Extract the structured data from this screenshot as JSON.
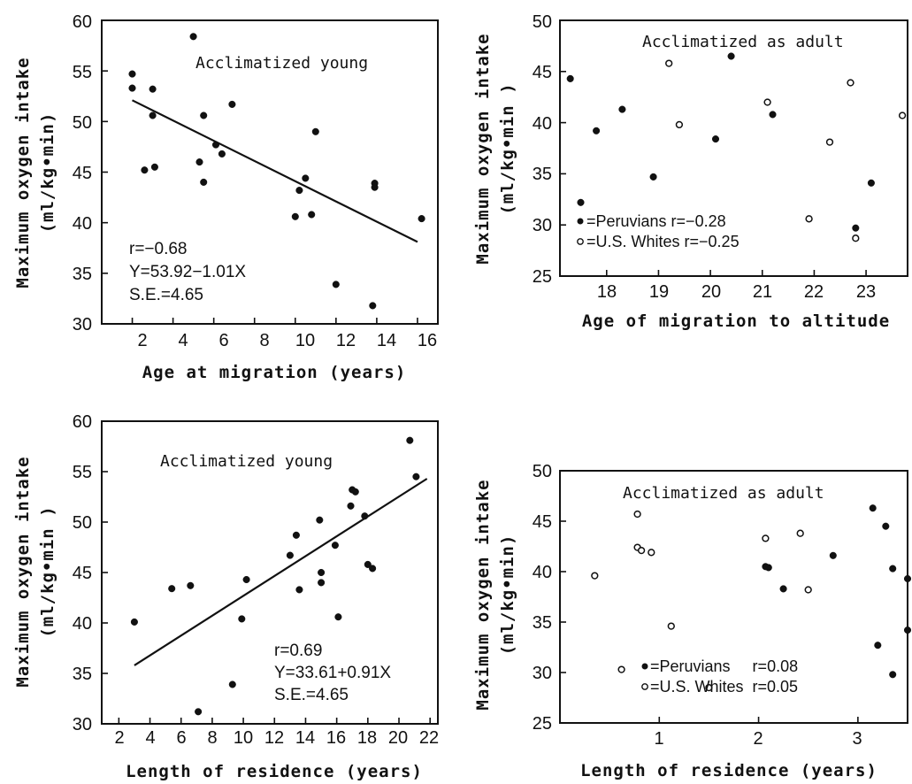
{
  "chart_data": [
    {
      "type": "scatter",
      "title": "Acclimatized young",
      "xlabel": "Age at migration (years)",
      "ylabel": "Maximum oxygen intake",
      "ylabel_units": "(ml/kg•min)",
      "xlim": [
        0.5,
        17
      ],
      "ylim": [
        30,
        60
      ],
      "xticks": [
        2,
        4,
        6,
        8,
        10,
        12,
        14,
        16
      ],
      "yticks": [
        30,
        35,
        40,
        45,
        50,
        55,
        60
      ],
      "series": [
        {
          "marker": "filled",
          "points": [
            [
              2.0,
              54.7
            ],
            [
              2.0,
              53.3
            ],
            [
              2.6,
              45.2
            ],
            [
              3.0,
              53.2
            ],
            [
              3.0,
              50.6
            ],
            [
              3.1,
              45.5
            ],
            [
              5.0,
              58.4
            ],
            [
              5.3,
              46.0
            ],
            [
              5.5,
              50.6
            ],
            [
              5.5,
              44.0
            ],
            [
              6.1,
              47.7
            ],
            [
              6.4,
              46.8
            ],
            [
              6.9,
              51.7
            ],
            [
              10.0,
              40.6
            ],
            [
              10.2,
              43.2
            ],
            [
              10.5,
              44.4
            ],
            [
              10.8,
              40.8
            ],
            [
              11.0,
              49.0
            ],
            [
              12.0,
              33.9
            ],
            [
              13.8,
              31.8
            ],
            [
              13.9,
              43.9
            ],
            [
              13.9,
              43.5
            ],
            [
              16.2,
              40.4
            ]
          ]
        }
      ],
      "fit": {
        "x": [
          2.0,
          16.0
        ],
        "y": [
          52.1,
          38.1
        ]
      },
      "annotations": [
        "r=−0.68",
        "Y=53.92−1.01X",
        "S.E.=4.65"
      ]
    },
    {
      "type": "scatter",
      "title": "Acclimatized as adult",
      "xlabel": "Age of migration to altitude",
      "ylabel": "Maximum oxygen intake",
      "ylabel_units": "(ml/kg•min )",
      "xlim": [
        17.1,
        23.8
      ],
      "ylim": [
        25,
        50
      ],
      "xticks": [
        18,
        19,
        20,
        21,
        22,
        23
      ],
      "yticks": [
        25,
        30,
        35,
        40,
        45,
        50
      ],
      "series": [
        {
          "name": "Peruvians",
          "marker": "filled",
          "points": [
            [
              17.3,
              44.3
            ],
            [
              17.5,
              32.2
            ],
            [
              17.8,
              39.2
            ],
            [
              18.3,
              41.3
            ],
            [
              18.9,
              34.7
            ],
            [
              20.1,
              38.4
            ],
            [
              20.4,
              46.5
            ],
            [
              21.2,
              40.8
            ],
            [
              22.8,
              29.7
            ],
            [
              23.1,
              34.1
            ]
          ]
        },
        {
          "name": "U.S. Whites",
          "marker": "open",
          "points": [
            [
              19.2,
              45.8
            ],
            [
              19.4,
              39.8
            ],
            [
              21.1,
              42.0
            ],
            [
              21.9,
              30.6
            ],
            [
              22.3,
              38.1
            ],
            [
              22.7,
              43.9
            ],
            [
              22.8,
              28.7
            ],
            [
              23.7,
              40.7
            ]
          ]
        }
      ],
      "legend": [
        {
          "symbol": "•",
          "text": "=Peruvians r=−0.28"
        },
        {
          "symbol": "◦",
          "text": "=U.S. Whites r=−0.25"
        }
      ]
    },
    {
      "type": "scatter",
      "title": "Acclimatized young",
      "xlabel": "Length of residence (years)",
      "ylabel": "Maximum oxygen intake",
      "ylabel_units": "(ml/kg•min )",
      "xlim": [
        0.9,
        22.5
      ],
      "ylim": [
        30,
        60
      ],
      "xticks": [
        2,
        4,
        6,
        8,
        10,
        12,
        14,
        16,
        18,
        20,
        22
      ],
      "yticks": [
        30,
        35,
        40,
        45,
        50,
        55,
        60
      ],
      "series": [
        {
          "marker": "filled",
          "points": [
            [
              3.0,
              40.1
            ],
            [
              5.4,
              43.4
            ],
            [
              6.6,
              43.7
            ],
            [
              7.1,
              31.2
            ],
            [
              9.3,
              33.9
            ],
            [
              9.9,
              40.4
            ],
            [
              10.2,
              44.3
            ],
            [
              13.0,
              46.7
            ],
            [
              13.4,
              48.7
            ],
            [
              13.6,
              43.3
            ],
            [
              14.9,
              50.2
            ],
            [
              15.0,
              45.0
            ],
            [
              15.0,
              44.0
            ],
            [
              15.9,
              47.7
            ],
            [
              16.1,
              40.6
            ],
            [
              16.9,
              51.6
            ],
            [
              17.0,
              53.2
            ],
            [
              17.2,
              53.0
            ],
            [
              17.8,
              50.6
            ],
            [
              18.0,
              45.8
            ],
            [
              18.3,
              45.4
            ],
            [
              20.7,
              58.1
            ],
            [
              21.1,
              54.5
            ]
          ]
        }
      ],
      "fit": {
        "x": [
          3.0,
          21.8
        ],
        "y": [
          35.8,
          54.3
        ]
      },
      "annotations": [
        "r=0.69",
        "Y=33.61+0.91X",
        "S.E.=4.65"
      ]
    },
    {
      "type": "scatter",
      "title": "Acclimatized as adult",
      "xlabel": "Length of residence (years)",
      "ylabel": "Maximum oxygen intake",
      "ylabel_units": "(ml/kg•min)",
      "xlim": [
        0,
        3.5
      ],
      "ylim": [
        25,
        50
      ],
      "xticks": [
        1,
        2,
        3
      ],
      "yticks": [
        25,
        30,
        35,
        40,
        45,
        50
      ],
      "series": [
        {
          "name": "Peruvians",
          "marker": "filled",
          "points": [
            [
              2.07,
              40.5
            ],
            [
              2.1,
              40.4
            ],
            [
              2.25,
              38.3
            ],
            [
              2.75,
              41.6
            ],
            [
              3.15,
              46.3
            ],
            [
              3.2,
              32.7
            ],
            [
              3.28,
              44.5
            ],
            [
              3.35,
              40.3
            ],
            [
              3.35,
              29.8
            ],
            [
              3.5,
              39.3
            ],
            [
              3.5,
              34.2
            ]
          ]
        },
        {
          "name": "U.S. Whites",
          "marker": "open",
          "points": [
            [
              0.35,
              39.6
            ],
            [
              0.62,
              30.3
            ],
            [
              0.78,
              45.7
            ],
            [
              0.78,
              42.4
            ],
            [
              0.82,
              42.1
            ],
            [
              0.92,
              41.9
            ],
            [
              1.12,
              34.6
            ],
            [
              1.5,
              28.5
            ],
            [
              2.07,
              43.3
            ],
            [
              2.42,
              43.8
            ],
            [
              2.5,
              38.2
            ]
          ]
        }
      ],
      "legend": [
        {
          "symbol": "•",
          "text": "=Peruvians     r=0.08"
        },
        {
          "symbol": "◦",
          "text": "=U.S. Whites  r=0.05"
        }
      ]
    }
  ]
}
